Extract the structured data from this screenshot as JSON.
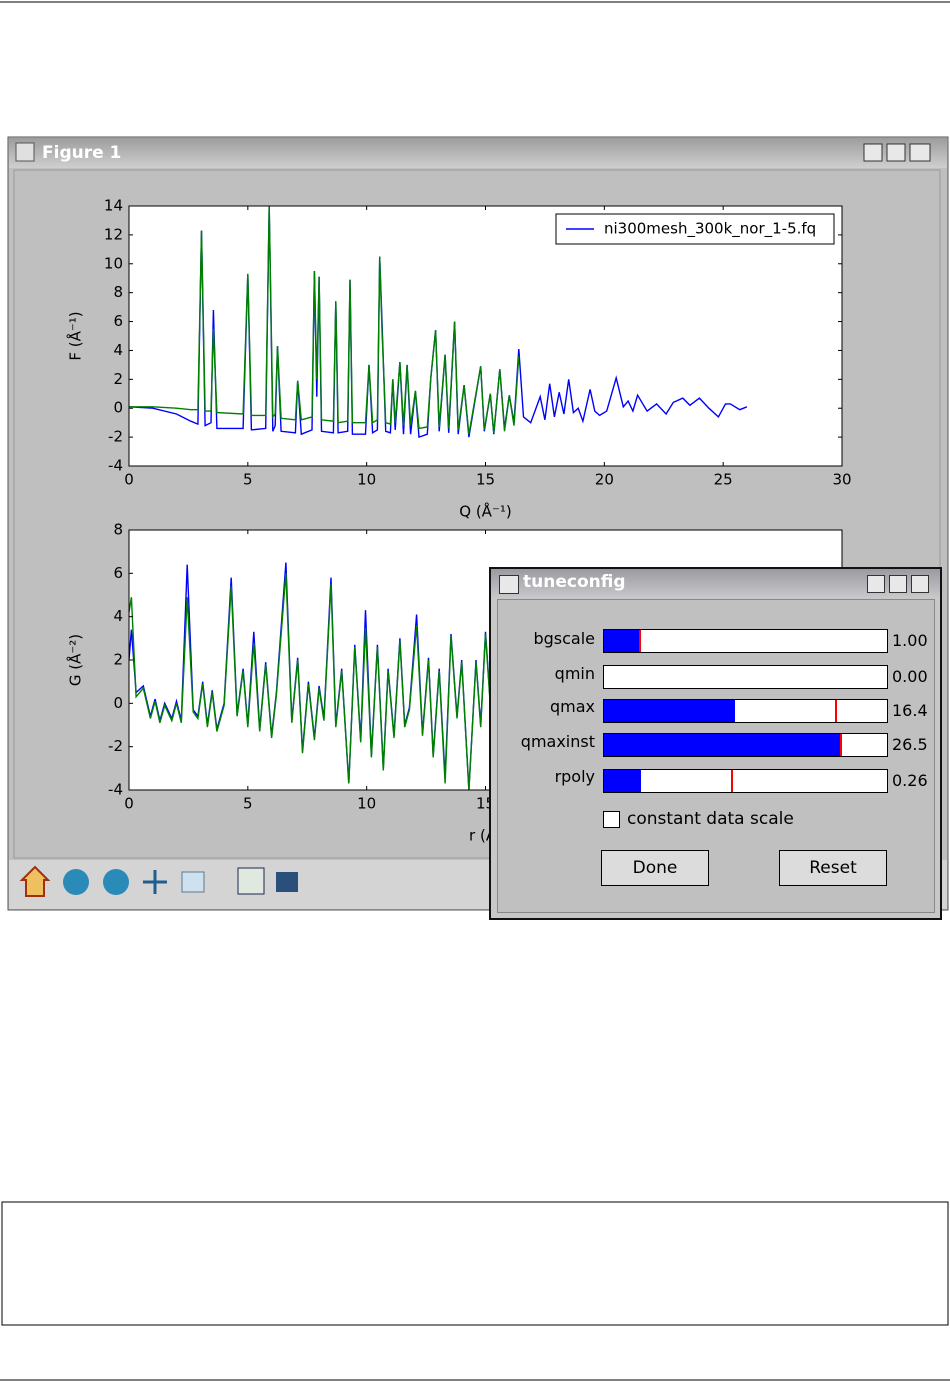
{
  "figure_window": {
    "title": "Figure 1"
  },
  "chart_data": [
    {
      "type": "line",
      "x_label": "Q (Å⁻¹)",
      "y_label": "F (Å⁻¹)",
      "x": [
        0,
        1,
        2,
        2.6,
        2.9,
        3.05,
        3.2,
        3.45,
        3.55,
        3.7,
        4.8,
        5.0,
        5.15,
        5.75,
        5.9,
        6.05,
        6.15,
        6.25,
        6.4,
        7.0,
        7.1,
        7.25,
        7.7,
        7.8,
        7.9,
        8.0,
        8.1,
        8.6,
        8.7,
        8.8,
        9.2,
        9.3,
        9.4,
        9.95,
        10.1,
        10.25,
        10.45,
        10.55,
        10.65,
        10.8,
        11.0,
        11.1,
        11.2,
        11.4,
        11.55,
        11.7,
        11.85,
        12.05,
        12.2,
        12.55,
        12.7,
        12.9,
        13.05,
        13.3,
        13.45,
        13.7,
        13.85,
        14.1,
        14.3,
        14.8,
        14.95,
        15.2,
        15.35,
        15.6,
        15.8,
        16.0,
        16.2,
        16.4,
        16.6,
        16.9,
        17.3,
        17.5,
        17.7,
        17.9,
        18.1,
        18.3,
        18.5,
        18.7,
        18.9,
        19.1,
        19.4,
        19.6,
        19.8,
        20.1,
        20.5,
        20.8,
        21.0,
        21.2,
        21.4,
        21.8,
        22.2,
        22.6,
        22.9,
        23.3,
        23.6,
        24.0,
        24.4,
        24.8,
        25.1,
        25.3,
        25.7,
        26.0
      ],
      "series": [
        {
          "name": "ni300mesh_300k_nor_1-5.fq",
          "color": "#0000ff",
          "values": [
            0.1,
            0,
            -0.4,
            -0.9,
            -1.1,
            12.3,
            -1.2,
            -1.0,
            6.8,
            -1.4,
            -1.4,
            9.3,
            -1.5,
            -1.4,
            14,
            -1.6,
            -1.2,
            4.3,
            -1.6,
            -1.7,
            1.9,
            -1.8,
            -1.5,
            9.5,
            0.8,
            9.1,
            -1.6,
            -1.7,
            7.4,
            -1.7,
            -1.6,
            8.9,
            -1.8,
            -1.8,
            3.0,
            -1.7,
            -1.5,
            10.5,
            5.8,
            -1.6,
            -1.7,
            2.0,
            -1.5,
            3.2,
            -1.8,
            3.0,
            -1.8,
            1.2,
            -2.0,
            -1.8,
            2.1,
            5.4,
            -1.6,
            3.7,
            -1.7,
            6.0,
            -1.8,
            1.6,
            -2.0,
            2.9,
            -1.6,
            1.0,
            -1.8,
            2.7,
            -1.4,
            0.9,
            -1.0,
            4.1,
            -0.6,
            -1.0,
            0.8,
            -0.8,
            1.7,
            -0.6,
            1.1,
            -0.4,
            2.0,
            -0.3,
            0.0,
            -0.9,
            1.3,
            -0.2,
            -0.5,
            -0.2,
            2.1,
            0.1,
            0.5,
            -0.2,
            0.9,
            -0.2,
            0.3,
            -0.4,
            0.4,
            0.7,
            0.2,
            0.7,
            0.0,
            -0.6,
            0.3,
            0.3,
            -0.1,
            0.1
          ]
        },
        {
          "color": "#008000",
          "values": [
            0.1,
            0.1,
            0,
            -0.1,
            -0.1,
            12.3,
            -0.2,
            -0.2,
            5.5,
            -0.3,
            -0.4,
            9.3,
            -0.5,
            -0.5,
            14,
            -0.6,
            -0.4,
            4.3,
            -0.7,
            -0.8,
            1.9,
            -0.8,
            -0.6,
            9.5,
            2.0,
            9.1,
            -0.8,
            -0.9,
            7.4,
            -1.0,
            -0.9,
            8.9,
            -1.0,
            -1.0,
            3.0,
            -1.0,
            -0.8,
            10.5,
            5.2,
            -1.0,
            -1.1,
            2.0,
            -1.0,
            3.2,
            -1.2,
            3.0,
            -1.2,
            1.2,
            -1.4,
            -1.3,
            2.1,
            5.4,
            -1.3,
            3.7,
            -1.4,
            6.0,
            -1.5,
            1.6,
            -1.8,
            2.9,
            -1.5,
            1.0,
            -1.7,
            2.7,
            -1.6,
            0.9,
            -1.2,
            3.6,
            null,
            null,
            null,
            null,
            null,
            null,
            null,
            null,
            null,
            null,
            null,
            null,
            null,
            null,
            null,
            null,
            null,
            null,
            null,
            null,
            null,
            null,
            null,
            null,
            null,
            null,
            null,
            null,
            null,
            null,
            null,
            null,
            null,
            null
          ]
        }
      ],
      "xlim": [
        0,
        30
      ],
      "xticks": [
        0,
        5,
        10,
        15,
        20,
        25,
        30
      ],
      "ylim": [
        -4,
        14
      ],
      "yticks": [
        -4,
        -2,
        0,
        2,
        4,
        6,
        8,
        10,
        12,
        14
      ],
      "legend": "upper right"
    },
    {
      "type": "line",
      "x_label": "r (Å)",
      "y_label": "G (Å⁻²)",
      "x": [
        0,
        0.1,
        0.3,
        0.6,
        0.9,
        1.1,
        1.3,
        1.5,
        1.8,
        2.0,
        2.2,
        2.45,
        2.7,
        2.9,
        3.1,
        3.3,
        3.5,
        3.7,
        4.0,
        4.3,
        4.55,
        4.8,
        5.0,
        5.25,
        5.5,
        5.75,
        6.0,
        6.2,
        6.6,
        6.85,
        7.1,
        7.3,
        7.55,
        7.8,
        8.0,
        8.2,
        8.5,
        8.7,
        8.95,
        9.25,
        9.5,
        9.75,
        9.95,
        10.2,
        10.45,
        10.7,
        10.9,
        11.15,
        11.4,
        11.6,
        11.8,
        12.1,
        12.35,
        12.6,
        12.8,
        13.05,
        13.3,
        13.55,
        13.8,
        14.0,
        14.3,
        14.6,
        14.8,
        15.0,
        15.2
      ],
      "series": [
        {
          "color": "#0000ff",
          "values": [
            2.0,
            3.4,
            0.5,
            0.8,
            -0.6,
            0.2,
            -0.8,
            0,
            -0.7,
            0.1,
            -0.8,
            6.4,
            -0.3,
            -0.6,
            1.0,
            -1.0,
            0.6,
            -1.2,
            0,
            5.8,
            -0.5,
            1.6,
            -1.0,
            3.3,
            -1.2,
            1.9,
            -1.5,
            0.5,
            6.5,
            -0.8,
            2.1,
            -2.2,
            1.0,
            -1.6,
            0.8,
            -0.7,
            5.8,
            -1.0,
            1.6,
            -3.7,
            2.7,
            -1.7,
            4.3,
            -2.4,
            2.7,
            -3.0,
            1.6,
            -1.5,
            3.0,
            -1.0,
            -0.2,
            4.1,
            -1.4,
            2.1,
            -2.4,
            1.6,
            -3.4,
            3.2,
            -0.6,
            2.0,
            -4.0,
            2.0,
            -1.0,
            3.3,
            0.0
          ]
        },
        {
          "color": "#008000",
          "values": [
            4.2,
            4.9,
            0.3,
            0.7,
            -0.7,
            0.1,
            -0.9,
            -0.1,
            -0.8,
            0,
            -0.9,
            4.9,
            -0.4,
            -0.7,
            0.9,
            -1.1,
            0.5,
            -1.3,
            -0.1,
            5.4,
            -0.6,
            1.5,
            -1.1,
            2.8,
            -1.3,
            1.8,
            -1.6,
            0.4,
            6.0,
            -0.9,
            2.0,
            -2.3,
            0.9,
            -1.7,
            0.7,
            -0.8,
            5.5,
            -1.1,
            1.5,
            -3.7,
            2.6,
            -1.8,
            3.5,
            -2.5,
            2.6,
            -3.1,
            1.5,
            -1.6,
            2.9,
            -1.1,
            -0.3,
            3.6,
            -1.5,
            2.0,
            -2.5,
            1.5,
            -3.7,
            3.1,
            -0.7,
            1.9,
            -4.0,
            1.9,
            -1.1,
            3.2,
            -0.1
          ]
        }
      ],
      "xlim": [
        0,
        30
      ],
      "xticks": [
        0,
        5,
        10,
        15
      ],
      "ylim": [
        -4,
        8
      ],
      "yticks": [
        -4,
        -2,
        0,
        2,
        4,
        6,
        8
      ]
    }
  ],
  "tuneconfig": {
    "title": "tuneconfig",
    "sliders": [
      {
        "label": "bgscale",
        "value": "1.00"
      },
      {
        "label": "qmin",
        "value": "0.00"
      },
      {
        "label": "qmax",
        "value": "16.4"
      },
      {
        "label": "qmaxinst",
        "value": "26.5"
      },
      {
        "label": "rpoly",
        "value": "0.26"
      }
    ],
    "checkbox": "constant data scale",
    "buttons": [
      "Done",
      "Reset"
    ]
  }
}
